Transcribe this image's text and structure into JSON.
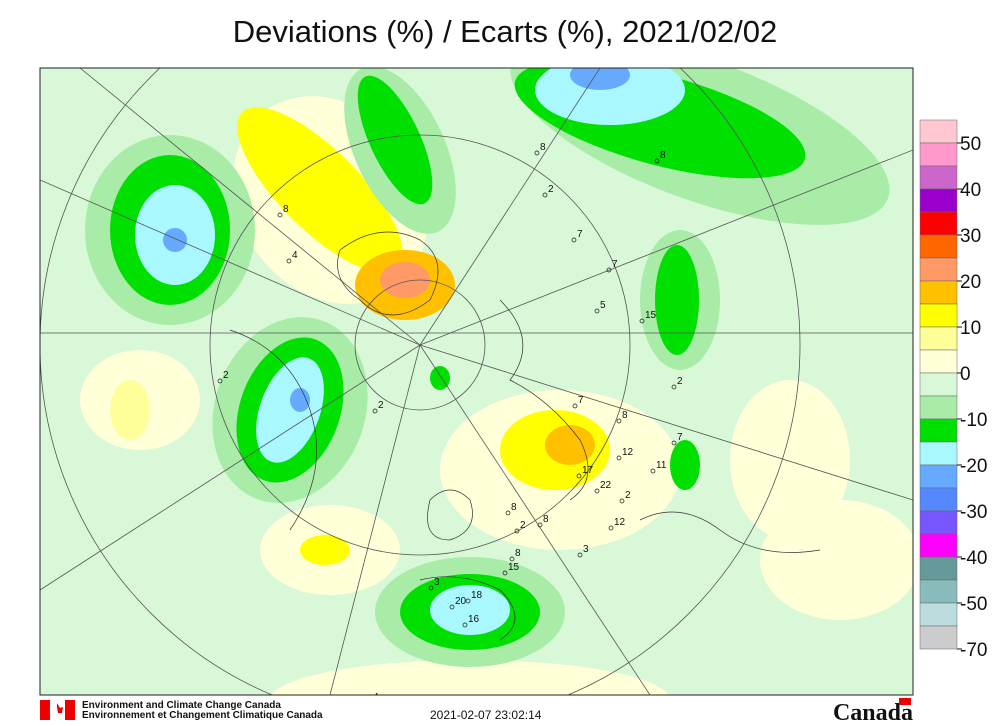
{
  "title": "Deviations (%) / Ecarts (%), 2021/02/02",
  "colorbar": {
    "labels": [
      50,
      40,
      30,
      20,
      10,
      0,
      -10,
      -20,
      -30,
      -40,
      -50,
      -70
    ],
    "colors": [
      "#ffc8d0",
      "#ff99cc",
      "#cc66cc",
      "#9900cc",
      "#ff0000",
      "#ff6600",
      "#ff9966",
      "#ffc000",
      "#ffff00",
      "#ffff99",
      "#ffffd8",
      "#d8f8d8",
      "#a8eca8",
      "#00e000",
      "#aaf8ff",
      "#66aaff",
      "#5588ff",
      "#7755ff",
      "#ff00ff",
      "#669999",
      "#88bbbb",
      "#bbdddd",
      "#cccccc"
    ]
  },
  "map": {
    "station_labels": [
      "8",
      "8",
      "2",
      "7",
      "7",
      "5",
      "15",
      "8",
      "4",
      "2",
      "2",
      "7",
      "8",
      "2",
      "12",
      "17",
      "7",
      "11",
      "22",
      "2",
      "12",
      "8",
      "2",
      "8",
      "3",
      "8",
      "15",
      "3",
      "20",
      "18",
      "16",
      "4"
    ]
  },
  "footer": {
    "agency_en": "Environment and Climate Change Canada",
    "agency_fr": "Environnement et Changement Climatique Canada",
    "timestamp": "2021-02-07 23:02:14",
    "wordmark": "Canada"
  }
}
